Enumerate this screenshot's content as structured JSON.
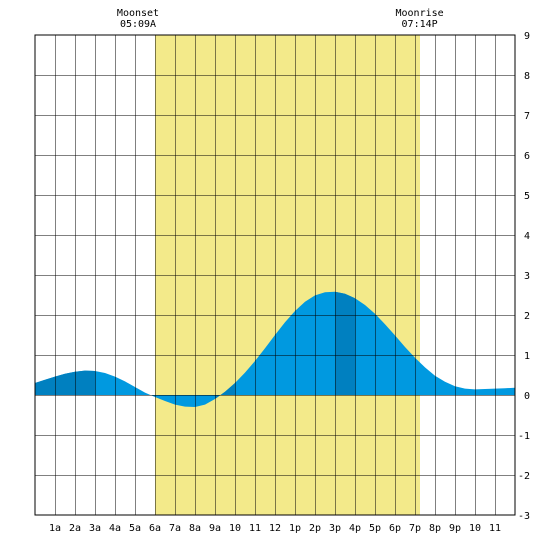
{
  "chart_data": {
    "type": "area",
    "title": "",
    "xlabel": "",
    "ylabel": "",
    "xlim": [
      0,
      24
    ],
    "ylim": [
      -3,
      9
    ],
    "grid": true,
    "x_tick_labels": [
      "1a",
      "2a",
      "3a",
      "4a",
      "5a",
      "6a",
      "7a",
      "8a",
      "9a",
      "10",
      "11",
      "12",
      "1p",
      "2p",
      "3p",
      "4p",
      "5p",
      "6p",
      "7p",
      "8p",
      "9p",
      "10",
      "11"
    ],
    "y_ticks": [
      9,
      8,
      7,
      6,
      5,
      4,
      3,
      2,
      1,
      0,
      -1,
      -2,
      -3
    ],
    "series": [
      {
        "x": [
          0,
          0.5,
          1,
          1.5,
          2,
          2.5,
          3,
          3.5,
          4,
          4.5,
          5,
          5.5,
          6,
          6.5,
          7,
          7.5,
          8,
          8.5,
          9,
          9.5,
          10,
          10.5,
          11,
          11.5,
          12,
          12.5,
          13,
          13.5,
          14,
          14.5,
          15,
          15.5,
          16,
          16.5,
          17,
          17.5,
          18,
          18.5,
          19,
          19.5,
          20,
          20.5,
          21,
          21.5,
          22,
          22.5,
          23,
          23.5,
          24
        ],
        "y": [
          0.3,
          0.38,
          0.46,
          0.53,
          0.58,
          0.61,
          0.6,
          0.55,
          0.46,
          0.34,
          0.2,
          0.06,
          -0.05,
          -0.15,
          -0.24,
          -0.29,
          -0.3,
          -0.24,
          -0.1,
          0.08,
          0.3,
          0.56,
          0.85,
          1.17,
          1.5,
          1.82,
          2.1,
          2.33,
          2.49,
          2.57,
          2.58,
          2.53,
          2.42,
          2.25,
          2.03,
          1.77,
          1.49,
          1.2,
          0.93,
          0.69,
          0.48,
          0.33,
          0.22,
          0.16,
          0.14,
          0.15,
          0.16,
          0.17,
          0.18
        ]
      }
    ],
    "shaded_bands": [
      [
        0,
        3
      ],
      [
        9,
        10
      ],
      [
        15,
        16
      ]
    ],
    "daylight": [
      6,
      19.25
    ],
    "moon_events": [
      {
        "label": "Moonset",
        "time": "05:09A",
        "hour": 5.15
      },
      {
        "label": "Moonrise",
        "time": "07:14P",
        "hour": 19.23
      }
    ],
    "colors": {
      "daylight": "#f3ea8a",
      "area": "#0099e0",
      "area_dark": "#0080c0",
      "grid": "#000000"
    }
  }
}
